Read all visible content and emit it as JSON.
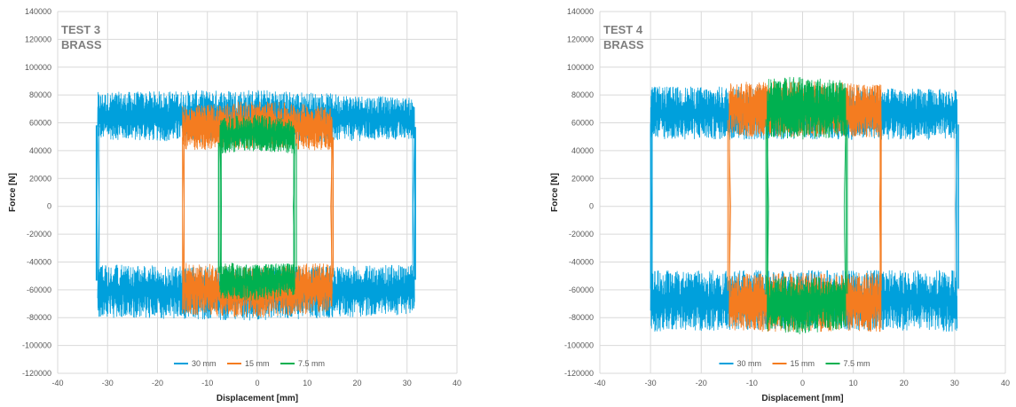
{
  "chart_data": [
    {
      "type": "line",
      "panel_label_lines": [
        "TEST 3",
        "BRASS"
      ],
      "title": "",
      "xlabel": "Displacement [mm]",
      "ylabel": "Force [N]",
      "xlim": [
        -40,
        40
      ],
      "ylim": [
        -120000,
        140000
      ],
      "x_ticks": [
        -40,
        -30,
        -20,
        -10,
        0,
        10,
        20,
        30,
        40
      ],
      "y_ticks": [
        -120000,
        -100000,
        -80000,
        -60000,
        -40000,
        -20000,
        0,
        20000,
        40000,
        60000,
        80000,
        100000,
        120000,
        140000
      ],
      "grid": true,
      "legend_position": "bottom",
      "series": [
        {
          "name": "30 mm",
          "color": "#00a0dc",
          "x_min": -32,
          "x_max": 31.5,
          "upper_band": [
            {
              "x": -30,
              "lo": 48000,
              "hi": 82000
            },
            {
              "x": 0,
              "lo": 45000,
              "hi": 84000
            },
            {
              "x": 30,
              "lo": 48000,
              "hi": 78000
            }
          ],
          "lower_band": [
            {
              "x": -30,
              "lo": -80000,
              "hi": -42000
            },
            {
              "x": 0,
              "lo": -82000,
              "hi": -44000
            },
            {
              "x": 30,
              "lo": -78000,
              "hi": -42000
            }
          ]
        },
        {
          "name": "15 mm",
          "color": "#f47c20",
          "x_min": -15,
          "x_max": 15,
          "upper_band": [
            {
              "x": -15,
              "lo": 40000,
              "hi": 72000
            },
            {
              "x": 0,
              "lo": 42000,
              "hi": 76000
            },
            {
              "x": 15,
              "lo": 40000,
              "hi": 72000
            }
          ],
          "lower_band": [
            {
              "x": -15,
              "lo": -78000,
              "hi": -40000
            },
            {
              "x": 0,
              "lo": -80000,
              "hi": -44000
            },
            {
              "x": 15,
              "lo": -76000,
              "hi": -40000
            }
          ]
        },
        {
          "name": "7.5 mm",
          "color": "#00b050",
          "x_min": -7.5,
          "x_max": 7.5,
          "upper_band": [
            {
              "x": -7.5,
              "lo": 38000,
              "hi": 64000
            },
            {
              "x": 0,
              "lo": 40000,
              "hi": 66000
            },
            {
              "x": 7.5,
              "lo": 38000,
              "hi": 62000
            }
          ],
          "lower_band": [
            {
              "x": -7.5,
              "lo": -66000,
              "hi": -40000
            },
            {
              "x": 0,
              "lo": -68000,
              "hi": -42000
            },
            {
              "x": 7.5,
              "lo": -64000,
              "hi": -40000
            }
          ]
        }
      ]
    },
    {
      "type": "line",
      "panel_label_lines": [
        "TEST 4",
        "BRASS"
      ],
      "title": "",
      "xlabel": "Displacement [mm]",
      "ylabel": "Force [N]",
      "xlim": [
        -40,
        40
      ],
      "ylim": [
        -120000,
        140000
      ],
      "x_ticks": [
        -40,
        -30,
        -20,
        -10,
        0,
        10,
        20,
        30,
        40
      ],
      "y_ticks": [
        -120000,
        -100000,
        -80000,
        -60000,
        -40000,
        -20000,
        0,
        20000,
        40000,
        60000,
        80000,
        100000,
        120000,
        140000
      ],
      "grid": true,
      "legend_position": "bottom",
      "series": [
        {
          "name": "30 mm",
          "color": "#00a0dc",
          "x_min": -30,
          "x_max": 30.5,
          "upper_band": [
            {
              "x": -30,
              "lo": 48000,
              "hi": 86000
            },
            {
              "x": 0,
              "lo": 48000,
              "hi": 86000
            },
            {
              "x": 30,
              "lo": 48000,
              "hi": 84000
            }
          ],
          "lower_band": [
            {
              "x": -30,
              "lo": -90000,
              "hi": -46000
            },
            {
              "x": 0,
              "lo": -88000,
              "hi": -46000
            },
            {
              "x": 30,
              "lo": -90000,
              "hi": -46000
            }
          ]
        },
        {
          "name": "15 mm",
          "color": "#f47c20",
          "x_min": -14.5,
          "x_max": 15.5,
          "upper_band": [
            {
              "x": -14.5,
              "lo": 50000,
              "hi": 90000
            },
            {
              "x": 0,
              "lo": 50000,
              "hi": 90000
            },
            {
              "x": 15.5,
              "lo": 50000,
              "hi": 88000
            }
          ],
          "lower_band": [
            {
              "x": -14.5,
              "lo": -90000,
              "hi": -48000
            },
            {
              "x": 0,
              "lo": -90000,
              "hi": -48000
            },
            {
              "x": 15.5,
              "lo": -90000,
              "hi": -48000
            }
          ]
        },
        {
          "name": "7.5 mm",
          "color": "#00b050",
          "x_min": -7,
          "x_max": 8.5,
          "upper_band": [
            {
              "x": -7,
              "lo": 50000,
              "hi": 92000
            },
            {
              "x": 0,
              "lo": 48000,
              "hi": 94000
            },
            {
              "x": 8.5,
              "lo": 50000,
              "hi": 90000
            }
          ],
          "lower_band": [
            {
              "x": -7,
              "lo": -90000,
              "hi": -52000
            },
            {
              "x": 0,
              "lo": -92000,
              "hi": -50000
            },
            {
              "x": 8.5,
              "lo": -88000,
              "hi": -52000
            }
          ]
        }
      ]
    }
  ]
}
